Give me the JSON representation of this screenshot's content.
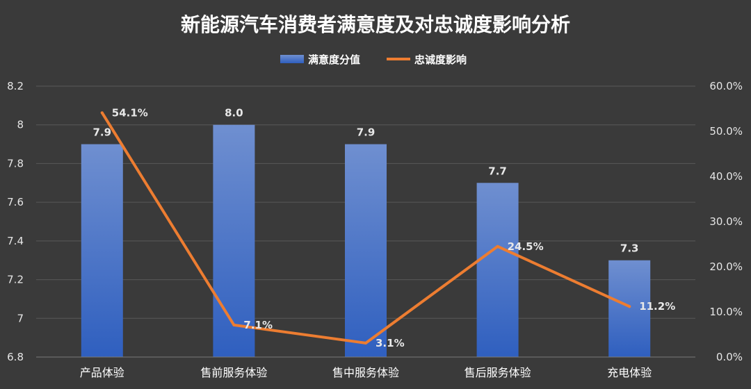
{
  "chart_data": {
    "type": "bar",
    "title": "新能源汽车消费者满意度及对忠诚度影响分析",
    "categories": [
      "产品体验",
      "售前服务体验",
      "售中服务体验",
      "售后服务体验",
      "充电体验"
    ],
    "series": [
      {
        "name": "满意度分值",
        "type": "bar",
        "axis": "left",
        "values": [
          7.9,
          8.0,
          7.9,
          7.7,
          7.3
        ],
        "labels": [
          "7.9",
          "8.0",
          "7.9",
          "7.7",
          "7.3"
        ],
        "color": "#4472c4"
      },
      {
        "name": "忠诚度影响",
        "type": "line",
        "axis": "right",
        "values": [
          54.1,
          7.1,
          3.1,
          24.5,
          11.2
        ],
        "labels": [
          "54.1%",
          "7.1%",
          "3.1%",
          "24.5%",
          "11.2%"
        ],
        "color": "#ed7d31"
      }
    ],
    "y_left": {
      "ylim": [
        6.8,
        8.2
      ],
      "ticks": [
        6.8,
        7,
        7.2,
        7.4,
        7.6,
        7.8,
        8,
        8.2
      ],
      "tick_labels": [
        "6.8",
        "7",
        "7.2",
        "7.4",
        "7.6",
        "7.8",
        "8",
        "8.2"
      ]
    },
    "y_right": {
      "ylim": [
        0,
        60
      ],
      "ticks": [
        0,
        10,
        20,
        30,
        40,
        50,
        60
      ],
      "tick_labels": [
        "0.0%",
        "10.0%",
        "20.0%",
        "30.0%",
        "40.0%",
        "50.0%",
        "60.0%"
      ]
    },
    "grid": true,
    "legend_position": "top-center"
  }
}
